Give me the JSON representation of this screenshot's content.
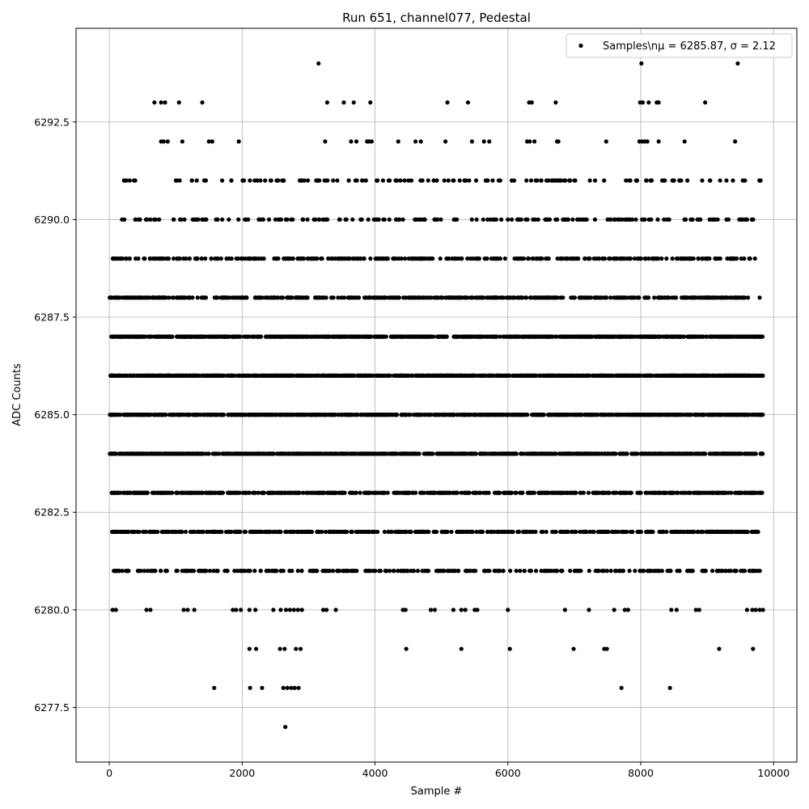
{
  "chart_data": {
    "type": "scatter",
    "title": "Run 651, channel077, Pedestal",
    "xlabel": "Sample #",
    "ylabel": "ADC Counts",
    "xlim": [
      -500,
      10350
    ],
    "ylim": [
      6276.1,
      6294.9
    ],
    "xticks": [
      0,
      2000,
      4000,
      6000,
      8000,
      10000
    ],
    "xtick_labels": [
      "0",
      "2000",
      "4000",
      "6000",
      "8000",
      "10000"
    ],
    "yticks": [
      6277.5,
      6280.0,
      6282.5,
      6285.0,
      6287.5,
      6290.0,
      6292.5
    ],
    "ytick_labels": [
      "6277.5",
      "6280.0",
      "6282.5",
      "6285.0",
      "6287.5",
      "6290.0",
      "6292.5"
    ],
    "grid": true,
    "legend": {
      "placement": "top-right",
      "label_prefix": "Samples\\n",
      "label_stats": "μ = 6285.87, σ = 2.12"
    },
    "marker_color": "#000000",
    "series": [
      {
        "name": "Samples",
        "bands": [
          {
            "y": 6294,
            "x": [
              3150,
              8010,
              9460
            ]
          },
          {
            "y": 6293,
            "x": [
              680,
              780,
              840,
              1050,
              1400,
              3280,
              3530,
              3680,
              3930,
              5090,
              5400,
              6320,
              6360,
              6720,
              7990,
              8030,
              8120,
              8240,
              8270,
              8970
            ]
          },
          {
            "y": 6292,
            "x": [
              780,
              820,
              880,
              1100,
              1500,
              1550,
              1950,
              3250,
              3640,
              3720,
              3880,
              3910,
              3950,
              4350,
              4610,
              4690,
              5060,
              5460,
              5640,
              5720,
              6290,
              6330,
              6400,
              6740,
              6760,
              7480,
              7980,
              8020,
              8060,
              8100,
              8270,
              8660,
              9420
            ]
          },
          {
            "y": 6280,
            "x": [
              50,
              100,
              560,
              620,
              1120,
              1180,
              1280,
              1860,
              1910,
              1980,
              2110,
              2200,
              2470,
              2580,
              2660,
              2720,
              2780,
              2840,
              2900,
              3220,
              3270,
              3410,
              4420,
              4460,
              4840,
              4900,
              5180,
              5300,
              5360,
              5500,
              5540,
              6000,
              6860,
              7220,
              7600,
              7760,
              7810,
              8460,
              8540,
              8830,
              8880,
              9600,
              9680,
              9730,
              9790,
              9840
            ]
          },
          {
            "y": 6279,
            "x": [
              2110,
              2210,
              2570,
              2640,
              2810,
              2880,
              4470,
              5300,
              6030,
              6990,
              7450,
              7490,
              9180,
              9690
            ]
          },
          {
            "y": 6278,
            "x": [
              1580,
              2120,
              2300,
              2620,
              2680,
              2740,
              2790,
              2850,
              7710,
              8440
            ]
          },
          {
            "y": 6277,
            "x": [
              2650
            ]
          }
        ],
        "dense_bands": [
          {
            "y": 6291,
            "count": 150,
            "xmin": 170,
            "xmax": 9830
          },
          {
            "y": 6290,
            "count": 210,
            "xmin": 150,
            "xmax": 9760
          },
          {
            "y": 6289,
            "count": 330,
            "xmin": 0,
            "xmax": 9740
          },
          {
            "y": 6288,
            "count": 520,
            "xmin": 0,
            "xmax": 9830
          },
          {
            "y": 6287,
            "count": 900,
            "xmin": 30,
            "xmax": 9840
          },
          {
            "y": 6286,
            "count": 1100,
            "xmin": 0,
            "xmax": 9840
          },
          {
            "y": 6285,
            "count": 900,
            "xmin": 0,
            "xmax": 9840
          },
          {
            "y": 6284,
            "count": 900,
            "xmin": 0,
            "xmax": 9840
          },
          {
            "y": 6283,
            "count": 560,
            "xmin": 30,
            "xmax": 9840
          },
          {
            "y": 6282,
            "count": 480,
            "xmin": 0,
            "xmax": 9830
          },
          {
            "y": 6281,
            "count": 300,
            "xmin": 0,
            "xmax": 9840
          }
        ]
      }
    ]
  }
}
